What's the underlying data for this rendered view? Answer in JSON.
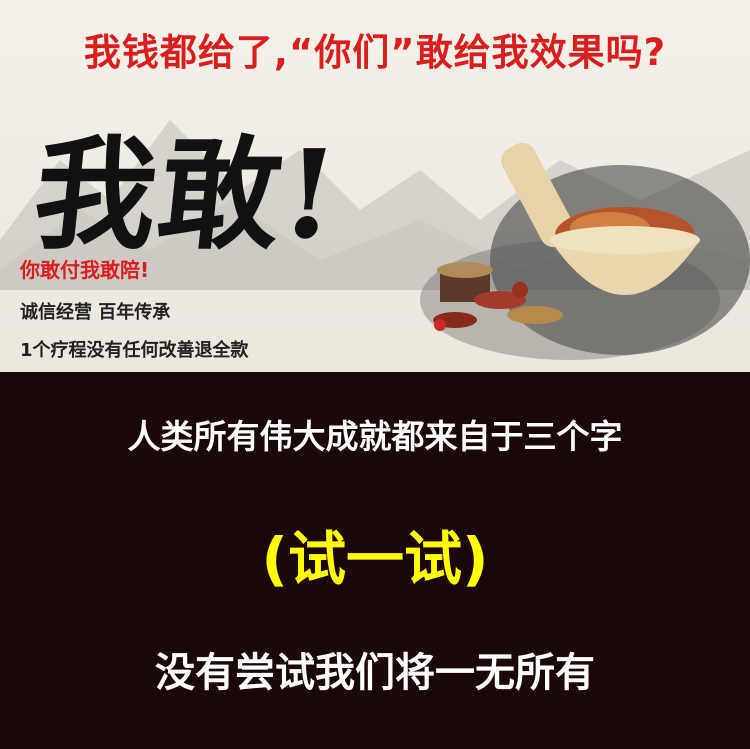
{
  "top": {
    "headline": "我钱都给了,“你们”敢给我效果吗?",
    "brush": "我敢!",
    "slogan": "你敢付我敢陪!",
    "line2": "诚信经营   百年传承",
    "line3": "1个疗程没有任何改善退全款"
  },
  "bottom": {
    "line1": "人类所有伟大成就都来自于三个字",
    "line2": "(试一试)",
    "line3": "没有尝试我们将一无所有"
  },
  "colors": {
    "red": "#d81e1e",
    "yellow": "#ffff00",
    "dark": "#1a0707"
  }
}
